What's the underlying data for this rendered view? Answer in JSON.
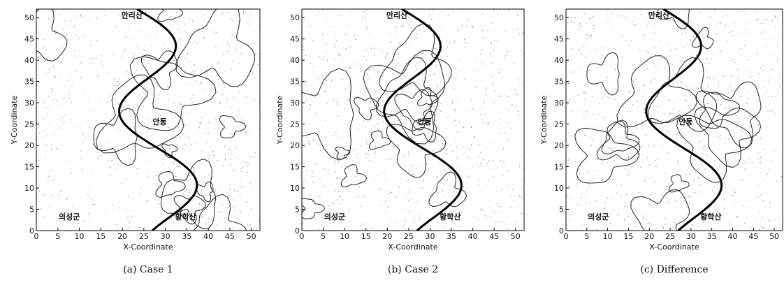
{
  "chart_data": [
    {
      "type": "contour",
      "caption": "(a) Case 1",
      "xlabel": "X-Coordinate",
      "ylabel": "Y-Coordinate",
      "xlim": [
        0,
        52
      ],
      "ylim": [
        0,
        52
      ],
      "xticks": [
        0,
        5,
        10,
        15,
        20,
        25,
        30,
        35,
        40,
        45,
        50
      ],
      "yticks": [
        0,
        5,
        10,
        15,
        20,
        25,
        30,
        35,
        40,
        45,
        50
      ],
      "annotations": [
        "만리산",
        "의성군",
        "황학산",
        "안동"
      ]
    },
    {
      "type": "contour",
      "caption": "(b) Case 2",
      "xlabel": "X-Coordinate",
      "ylabel": "Y-Coordinate",
      "xlim": [
        0,
        52
      ],
      "ylim": [
        0,
        52
      ],
      "xticks": [
        0,
        5,
        10,
        15,
        20,
        25,
        30,
        35,
        40,
        45,
        50
      ],
      "yticks": [
        0,
        5,
        10,
        15,
        20,
        25,
        30,
        35,
        40,
        45,
        50
      ],
      "annotations": [
        "만리산",
        "의성군",
        "황학산",
        "안동"
      ]
    },
    {
      "type": "contour",
      "caption": "(c) Difference",
      "xlabel": "X-Coordinate",
      "ylabel": "Y-Coordinate",
      "xlim": [
        0,
        52
      ],
      "ylim": [
        0,
        52
      ],
      "xticks": [
        0,
        5,
        10,
        15,
        20,
        25,
        30,
        35,
        40,
        45,
        50
      ],
      "yticks": [
        0,
        5,
        10,
        15,
        20,
        25,
        30,
        35,
        40,
        45,
        50
      ],
      "annotations": [
        "만리산",
        "의성군",
        "황학산",
        "안동"
      ]
    }
  ]
}
